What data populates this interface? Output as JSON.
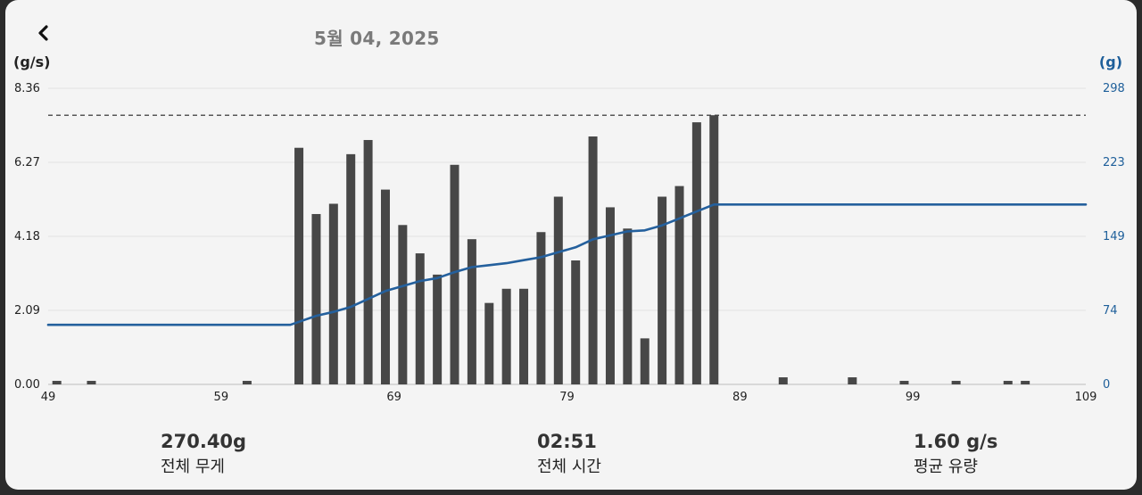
{
  "header": {
    "back_icon": "chevron-left-icon",
    "date": "5월 04, 2025"
  },
  "chart_data": {
    "type": "bar",
    "ylabel_left": "(g/s)",
    "ylabel_right": "(g)",
    "xlim": [
      49,
      109
    ],
    "x_ticks": [
      "49",
      "59",
      "69",
      "79",
      "89",
      "99",
      "109"
    ],
    "y_left_ticks": [
      "8.36",
      "6.27",
      "4.18",
      "2.09",
      "0.00"
    ],
    "y_left_lim": [
      0,
      8.36
    ],
    "y_right_ticks": [
      "298",
      "223",
      "149",
      "74",
      "0"
    ],
    "y_right_lim": [
      0,
      298
    ],
    "dashed_line_value": 7.6,
    "colors": {
      "bars": "#474747",
      "line": "#24609d",
      "right_axis": "#1e5f9a"
    },
    "bars": [
      {
        "x": 49.5,
        "y": 0.1
      },
      {
        "x": 51.5,
        "y": 0.1
      },
      {
        "x": 60.5,
        "y": 0.1
      },
      {
        "x": 63.5,
        "y": 6.68
      },
      {
        "x": 64.5,
        "y": 4.81
      },
      {
        "x": 65.5,
        "y": 5.1
      },
      {
        "x": 66.5,
        "y": 6.5
      },
      {
        "x": 67.5,
        "y": 6.9
      },
      {
        "x": 68.5,
        "y": 5.5
      },
      {
        "x": 69.5,
        "y": 4.5
      },
      {
        "x": 70.5,
        "y": 3.7
      },
      {
        "x": 71.5,
        "y": 3.1
      },
      {
        "x": 72.5,
        "y": 6.2
      },
      {
        "x": 73.5,
        "y": 4.1
      },
      {
        "x": 74.5,
        "y": 2.3
      },
      {
        "x": 75.5,
        "y": 2.7
      },
      {
        "x": 76.5,
        "y": 2.7
      },
      {
        "x": 77.5,
        "y": 4.3
      },
      {
        "x": 78.5,
        "y": 5.3
      },
      {
        "x": 79.5,
        "y": 3.5
      },
      {
        "x": 80.5,
        "y": 7.0
      },
      {
        "x": 81.5,
        "y": 5.0
      },
      {
        "x": 82.5,
        "y": 4.4
      },
      {
        "x": 83.5,
        "y": 1.3
      },
      {
        "x": 84.5,
        "y": 5.3
      },
      {
        "x": 85.5,
        "y": 5.6
      },
      {
        "x": 86.5,
        "y": 7.4
      },
      {
        "x": 87.5,
        "y": 7.6
      },
      {
        "x": 91.5,
        "y": 0.2
      },
      {
        "x": 95.5,
        "y": 0.2
      },
      {
        "x": 98.5,
        "y": 0.1
      },
      {
        "x": 101.5,
        "y": 0.1
      },
      {
        "x": 104.5,
        "y": 0.1
      },
      {
        "x": 105.5,
        "y": 0.1
      }
    ],
    "weight_line": [
      [
        49,
        60
      ],
      [
        58,
        60
      ],
      [
        63,
        60
      ],
      [
        63.5,
        63
      ],
      [
        64.5,
        69
      ],
      [
        65.5,
        73
      ],
      [
        66.5,
        78
      ],
      [
        67.5,
        86
      ],
      [
        68.5,
        94
      ],
      [
        69.5,
        99
      ],
      [
        70.5,
        104
      ],
      [
        71.5,
        107
      ],
      [
        72.5,
        113
      ],
      [
        73.5,
        118
      ],
      [
        74.5,
        120
      ],
      [
        75.5,
        122
      ],
      [
        76.5,
        125
      ],
      [
        77.5,
        128
      ],
      [
        78.5,
        133
      ],
      [
        79.5,
        138
      ],
      [
        80.5,
        146
      ],
      [
        81.5,
        150
      ],
      [
        82.5,
        154
      ],
      [
        83.5,
        155
      ],
      [
        84.5,
        160
      ],
      [
        85.5,
        167
      ],
      [
        86.5,
        174
      ],
      [
        87.5,
        181
      ],
      [
        89,
        181
      ],
      [
        109,
        181
      ]
    ]
  },
  "stats": [
    {
      "value": "270.40g",
      "label": "전체 무게"
    },
    {
      "value": "02:51",
      "label": "전체 시간"
    },
    {
      "value": "1.60 g/s",
      "label": "평균 유량"
    }
  ]
}
